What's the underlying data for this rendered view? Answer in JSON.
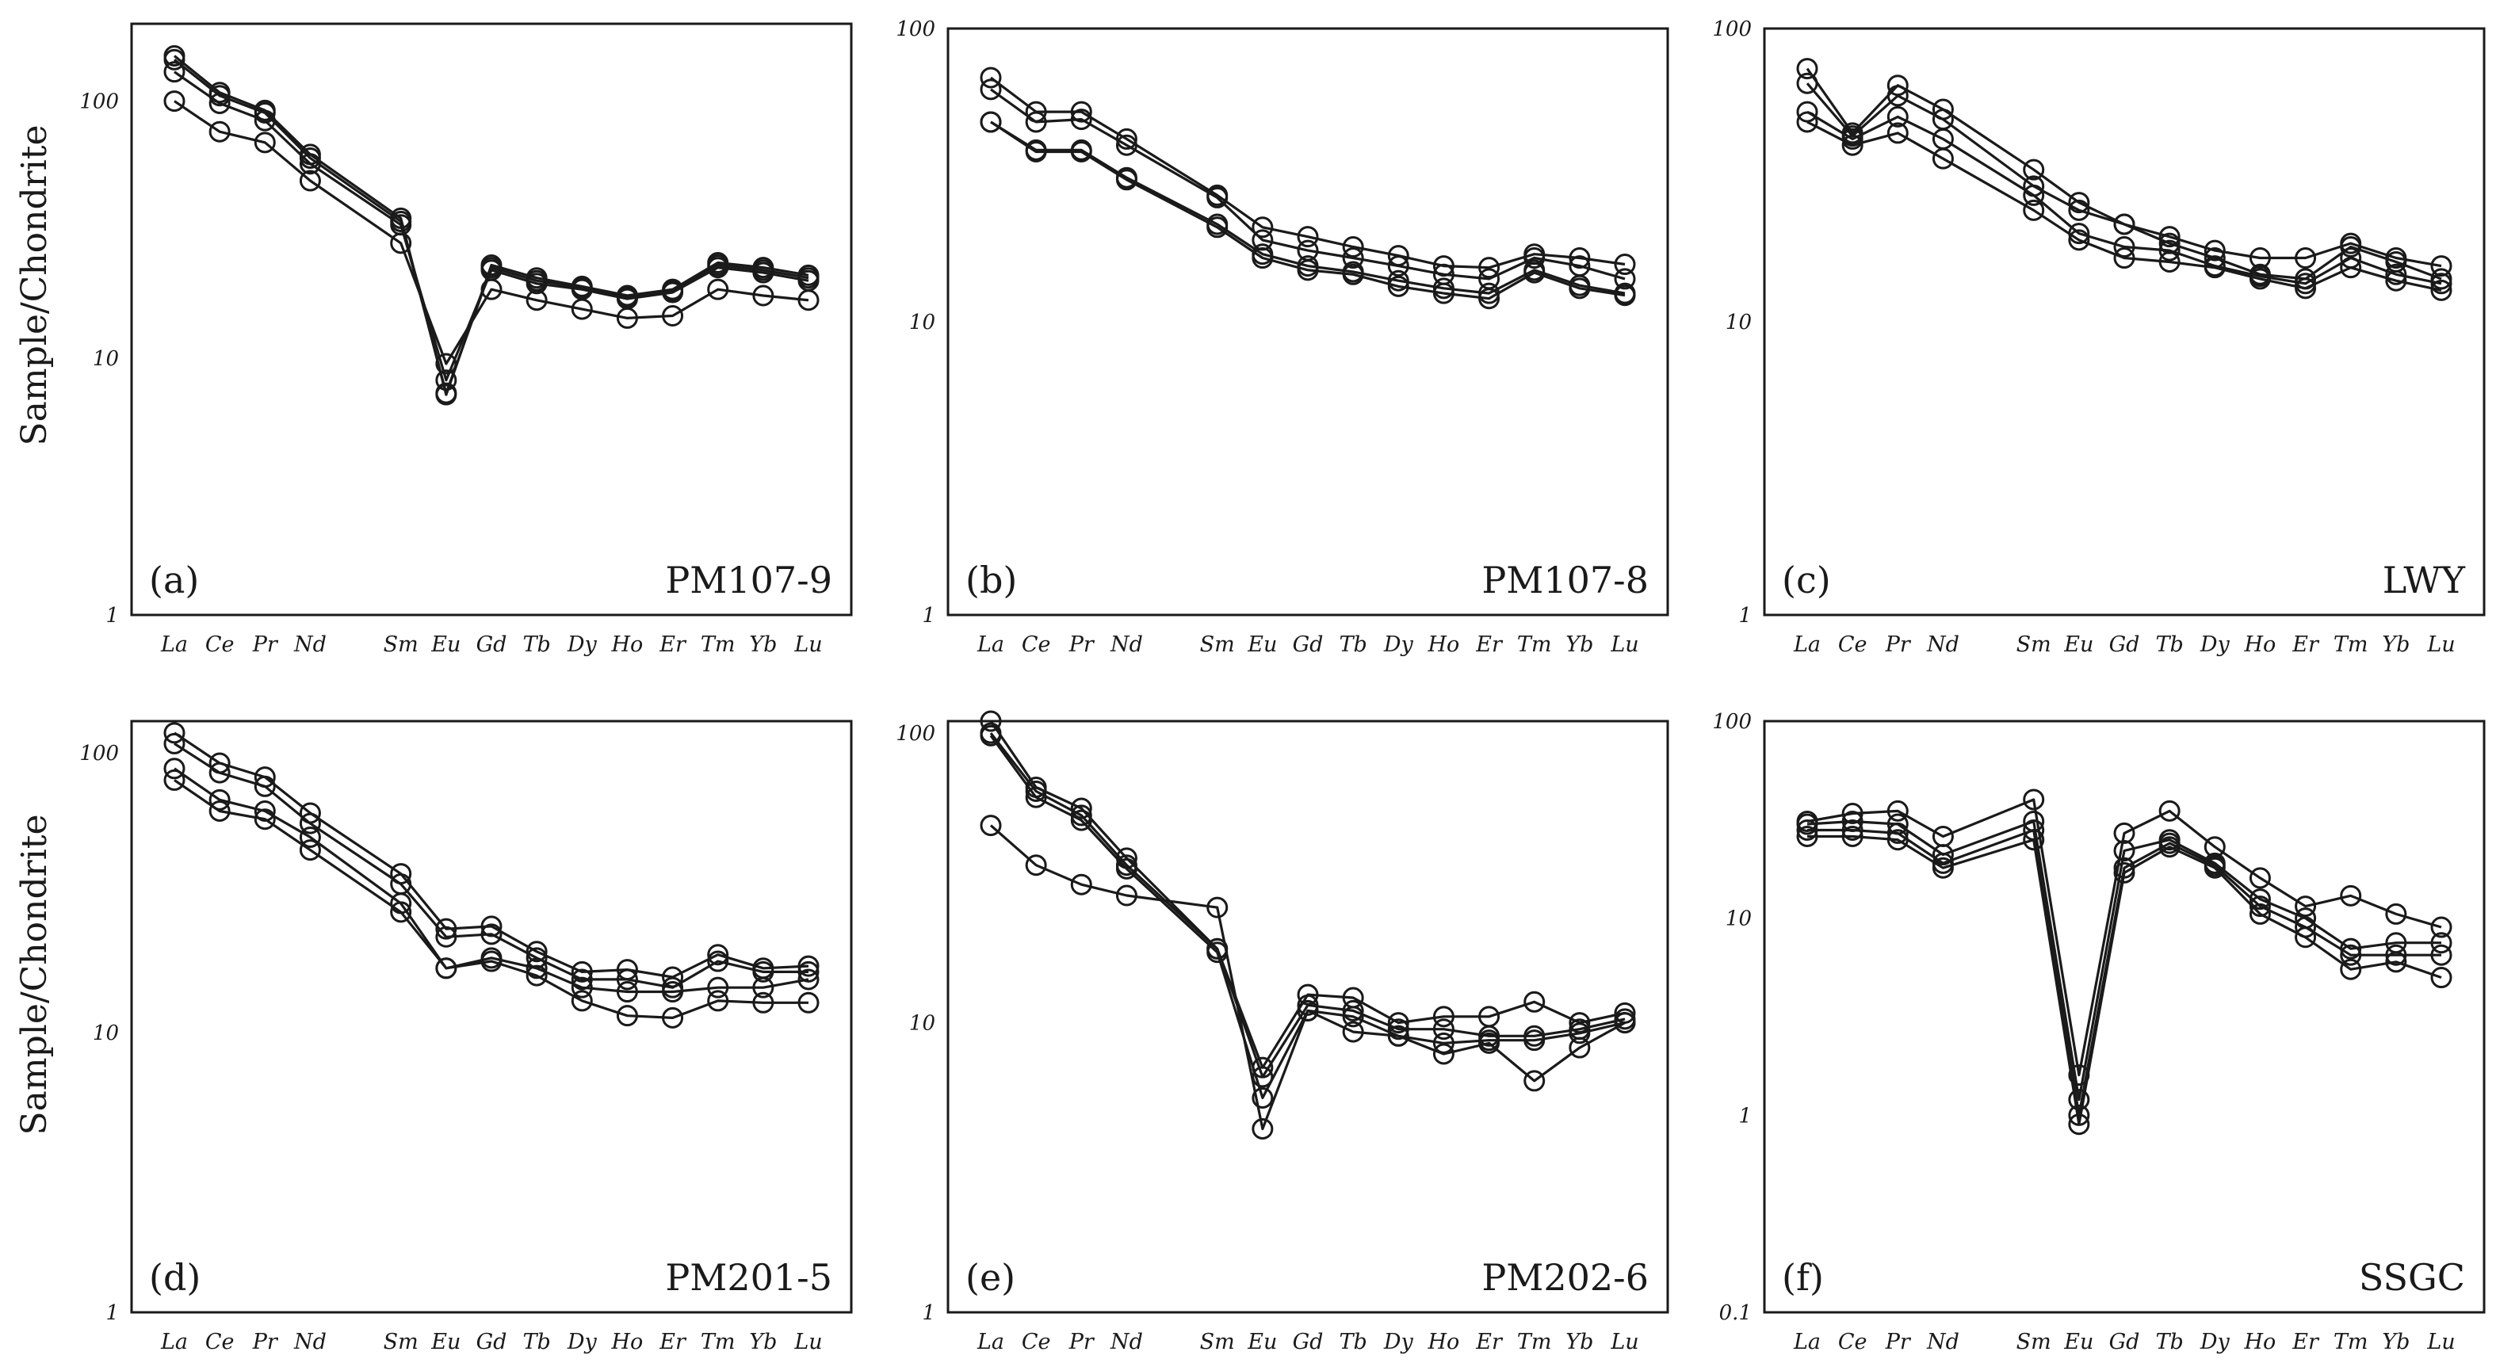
{
  "figure": {
    "ylabel": "Sample/Chondrite",
    "marker": "open-circle",
    "line_color": "#1a1a1a"
  },
  "chart_data": [
    {
      "type": "line",
      "panel_label": "(a)",
      "sample_name": "PM107-9",
      "yscale": "log",
      "ylim": [
        1,
        200
      ],
      "yticks": [
        "1",
        "10",
        "100"
      ],
      "categories": [
        "La",
        "Ce",
        "Pr",
        "Nd",
        "Sm",
        "Eu",
        "Gd",
        "Tb",
        "Dy",
        "Ho",
        "Er",
        "Tm",
        "Yb",
        "Lu"
      ],
      "category_positions": [
        1,
        2,
        3,
        4,
        6,
        7,
        8,
        9,
        10,
        11,
        12,
        13,
        14,
        15
      ],
      "series": [
        {
          "name": "1",
          "values": [
            150,
            108,
            92,
            62,
            35,
            7.2,
            23,
            20.5,
            19,
            17.5,
            18.5,
            23.5,
            22.5,
            21
          ]
        },
        {
          "name": "2",
          "values": [
            145,
            105,
            90,
            60,
            34,
            7.3,
            22.5,
            20,
            18.8,
            17.2,
            18.2,
            23,
            22,
            20.5
          ]
        },
        {
          "name": "3",
          "values": [
            130,
            98,
            84,
            57,
            33,
            8.2,
            22,
            19.5,
            18.5,
            17,
            18,
            22.5,
            21.5,
            20
          ]
        },
        {
          "name": "4",
          "values": [
            100,
            76,
            69,
            49,
            28,
            9.5,
            18.5,
            16.8,
            15.5,
            14.3,
            14.6,
            18.5,
            17.5,
            16.8
          ]
        }
      ]
    },
    {
      "type": "line",
      "panel_label": "(b)",
      "sample_name": "PM107-8",
      "yscale": "log",
      "ylim": [
        1,
        100
      ],
      "yticks": [
        "1",
        "10",
        "100"
      ],
      "categories": [
        "La",
        "Ce",
        "Pr",
        "Nd",
        "Sm",
        "Eu",
        "Gd",
        "Tb",
        "Dy",
        "Ho",
        "Er",
        "Tm",
        "Yb",
        "Lu"
      ],
      "category_positions": [
        1,
        2,
        3,
        4,
        6,
        7,
        8,
        9,
        10,
        11,
        12,
        13,
        14,
        15
      ],
      "series": [
        {
          "name": "1",
          "values": [
            68,
            52,
            52,
            42,
            27,
            21,
            19.5,
            18,
            16.8,
            15.5,
            15.3,
            17,
            16.5,
            15.7
          ]
        },
        {
          "name": "2",
          "values": [
            62,
            48,
            49,
            40,
            26.5,
            19,
            17.5,
            16.5,
            15.5,
            14.5,
            14,
            16.5,
            15.5,
            14
          ]
        },
        {
          "name": "3",
          "values": [
            48,
            38.5,
            38.5,
            31,
            21.5,
            17,
            15.5,
            14.8,
            13.8,
            13,
            12.5,
            15,
            13.3,
            12.5
          ]
        },
        {
          "name": "4",
          "values": [
            48,
            38,
            38,
            30.5,
            21,
            16.5,
            15,
            14.5,
            13.2,
            12.5,
            12,
            14.7,
            13,
            12.3
          ]
        }
      ]
    },
    {
      "type": "line",
      "panel_label": "(c)",
      "sample_name": "LWY",
      "yscale": "log",
      "ylim": [
        1,
        100
      ],
      "yticks": [
        "1",
        "10",
        "100"
      ],
      "categories": [
        "La",
        "Ce",
        "Pr",
        "Nd",
        "Sm",
        "Eu",
        "Gd",
        "Tb",
        "Dy",
        "Ho",
        "Er",
        "Tm",
        "Yb",
        "Lu"
      ],
      "category_positions": [
        1,
        2,
        3,
        4,
        6,
        7,
        8,
        9,
        10,
        11,
        12,
        13,
        14,
        15
      ],
      "series": [
        {
          "name": "1",
          "values": [
            73,
            44,
            64,
            53,
            33,
            25.5,
            21.5,
            19.5,
            17.5,
            16.5,
            16.5,
            18.5,
            16.5,
            15.5
          ]
        },
        {
          "name": "2",
          "values": [
            65,
            43,
            59,
            49,
            29,
            24,
            21.5,
            18.5,
            16.5,
            14.5,
            14,
            18,
            16,
            14
          ]
        },
        {
          "name": "3",
          "values": [
            52,
            42,
            50,
            42,
            27,
            20,
            18,
            17.5,
            15.5,
            14.3,
            13.5,
            16.5,
            14.5,
            13.5
          ]
        },
        {
          "name": "4",
          "values": [
            48,
            40,
            44,
            36,
            24,
            19,
            16.5,
            16,
            15.3,
            14,
            13,
            15.3,
            13.8,
            12.8
          ]
        }
      ]
    },
    {
      "type": "line",
      "panel_label": "(d)",
      "sample_name": "PM201-5",
      "yscale": "log",
      "ylim": [
        1,
        130
      ],
      "yticks": [
        "1",
        "10",
        "100"
      ],
      "categories": [
        "La",
        "Ce",
        "Pr",
        "Nd",
        "Sm",
        "Eu",
        "Gd",
        "Tb",
        "Dy",
        "Ho",
        "Er",
        "Tm",
        "Yb",
        "Lu"
      ],
      "category_positions": [
        1,
        2,
        3,
        4,
        6,
        7,
        8,
        9,
        10,
        11,
        12,
        13,
        14,
        15
      ],
      "series": [
        {
          "name": "1",
          "values": [
            118,
            92,
            82,
            61,
            37,
            23.5,
            24,
            19.5,
            16.5,
            16.8,
            15.8,
            19,
            17,
            17.3
          ]
        },
        {
          "name": "2",
          "values": [
            108,
            85,
            76,
            56,
            34,
            22,
            22.5,
            18.5,
            15.5,
            15.5,
            14.5,
            18,
            16.5,
            16.5
          ]
        },
        {
          "name": "3",
          "values": [
            88,
            68,
            62,
            50,
            29,
            17,
            18.5,
            17,
            14.5,
            14,
            14,
            14.5,
            14.5,
            15.5
          ]
        },
        {
          "name": "4",
          "values": [
            80,
            62,
            58,
            45,
            27,
            17,
            18,
            16,
            13,
            11.5,
            11.3,
            13,
            12.8,
            12.8
          ]
        }
      ]
    },
    {
      "type": "line",
      "panel_label": "(e)",
      "sample_name": "PM202-6",
      "yscale": "log",
      "ylim": [
        1,
        110
      ],
      "yticks": [
        "1",
        "10",
        "100"
      ],
      "categories": [
        "La",
        "Ce",
        "Pr",
        "Nd",
        "Sm",
        "Eu",
        "Gd",
        "Tb",
        "Dy",
        "Ho",
        "Er",
        "Tm",
        "Yb",
        "Lu"
      ],
      "category_positions": [
        1,
        2,
        3,
        4,
        6,
        7,
        8,
        9,
        10,
        11,
        12,
        13,
        14,
        15
      ],
      "series": [
        {
          "name": "1",
          "values": [
            110,
            65,
            55,
            37,
            18,
            7,
            12.5,
            12.2,
            10,
            10.5,
            10.5,
            11.8,
            10,
            10.8
          ]
        },
        {
          "name": "2",
          "values": [
            100,
            63,
            52,
            35,
            18,
            6.5,
            11.5,
            11,
            9.5,
            9.5,
            9,
            9,
            9.5,
            10.3
          ]
        },
        {
          "name": "3",
          "values": [
            98,
            60,
            50,
            34,
            17.5,
            5.5,
            11,
            10.5,
            9,
            8.5,
            8.7,
            8.7,
            9.2,
            10
          ]
        },
        {
          "name": "4",
          "values": [
            48,
            35,
            30,
            27.5,
            25,
            4.3,
            11,
            9.3,
            9,
            7.8,
            8.5,
            6.3,
            8.2,
            10
          ]
        }
      ]
    },
    {
      "type": "line",
      "panel_label": "(f)",
      "sample_name": "SSGC",
      "yscale": "log",
      "ylim": [
        0.1,
        100
      ],
      "yticks": [
        "0.1",
        "1",
        "10",
        "100"
      ],
      "categories": [
        "La",
        "Ce",
        "Pr",
        "Nd",
        "Sm",
        "Eu",
        "Gd",
        "Tb",
        "Dy",
        "Ho",
        "Er",
        "Tm",
        "Yb",
        "Lu"
      ],
      "category_positions": [
        1,
        2,
        3,
        4,
        6,
        7,
        8,
        9,
        10,
        11,
        12,
        13,
        14,
        15
      ],
      "series": [
        {
          "name": "1",
          "values": [
            31,
            34,
            35,
            26,
            40,
            1.6,
            27,
            35,
            23,
            16,
            11.5,
            13,
            10.5,
            9
          ]
        },
        {
          "name": "2",
          "values": [
            30,
            31,
            30,
            21,
            31,
            1.2,
            22,
            25,
            19,
            12.5,
            10,
            7,
            7.5,
            7.5
          ]
        },
        {
          "name": "3",
          "values": [
            28,
            28,
            27,
            19,
            28,
            1.0,
            18,
            24,
            18.5,
            11.5,
            9,
            6.5,
            6.5,
            6.5
          ]
        },
        {
          "name": "4",
          "values": [
            26,
            26,
            25,
            18,
            25,
            0.9,
            17,
            23,
            18,
            10.5,
            8,
            5.5,
            6,
            5
          ]
        }
      ]
    }
  ]
}
